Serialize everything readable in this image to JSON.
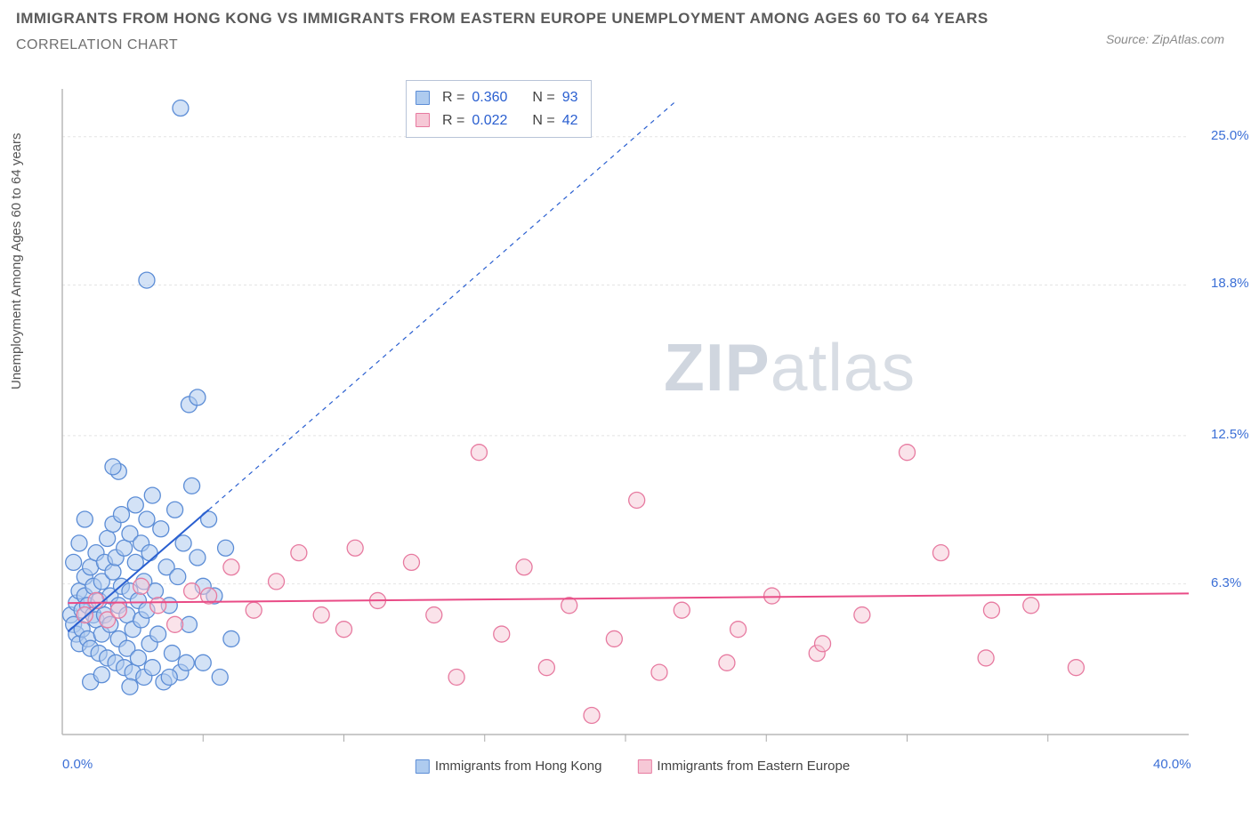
{
  "title": "IMMIGRANTS FROM HONG KONG VS IMMIGRANTS FROM EASTERN EUROPE UNEMPLOYMENT AMONG AGES 60 TO 64 YEARS",
  "subtitle": "CORRELATION CHART",
  "source": "Source: ZipAtlas.com",
  "ylabel": "Unemployment Among Ages 60 to 64 years",
  "watermark_zip": "ZIP",
  "watermark_atlas": "atlas",
  "chart": {
    "type": "scatter",
    "background_color": "#ffffff",
    "grid_color": "#e4e4e4",
    "grid_dash": "3,3",
    "axis_color": "#b9b9b9",
    "tick_color": "#aaaaaa",
    "xlim": [
      0,
      40
    ],
    "ylim": [
      0,
      27
    ],
    "xticks_minor": [
      5,
      10,
      15,
      20,
      25,
      30,
      35
    ],
    "yticks": [
      {
        "v": 6.3,
        "label": "6.3%"
      },
      {
        "v": 12.5,
        "label": "12.5%"
      },
      {
        "v": 18.8,
        "label": "18.8%"
      },
      {
        "v": 25.0,
        "label": "25.0%"
      }
    ],
    "xticks_labeled": [
      {
        "v": 0,
        "label": "0.0%"
      },
      {
        "v": 40,
        "label": "40.0%"
      }
    ],
    "series": [
      {
        "name": "Immigrants from Hong Kong",
        "marker_fill": "#aecbef",
        "marker_stroke": "#5c8dd6",
        "marker_fill_opacity": 0.55,
        "marker_r": 9,
        "trend_color": "#2a5fd0",
        "trend_width": 2,
        "trend_solid": {
          "x1": 0.2,
          "y1": 4.3,
          "x2": 5.2,
          "y2": 9.4
        },
        "trend_dashed": {
          "x1": 5.2,
          "y1": 9.4,
          "x2": 21.8,
          "y2": 26.5
        },
        "R": "0.360",
        "N": "93",
        "points": [
          [
            0.3,
            5.0
          ],
          [
            0.4,
            4.6
          ],
          [
            0.5,
            5.5
          ],
          [
            0.5,
            4.2
          ],
          [
            0.6,
            6.0
          ],
          [
            0.6,
            3.8
          ],
          [
            0.7,
            5.2
          ],
          [
            0.7,
            4.4
          ],
          [
            0.8,
            5.8
          ],
          [
            0.8,
            6.6
          ],
          [
            0.9,
            4.0
          ],
          [
            0.9,
            5.4
          ],
          [
            1.0,
            7.0
          ],
          [
            1.0,
            3.6
          ],
          [
            1.1,
            5.0
          ],
          [
            1.1,
            6.2
          ],
          [
            1.2,
            4.8
          ],
          [
            1.2,
            7.6
          ],
          [
            1.3,
            3.4
          ],
          [
            1.3,
            5.6
          ],
          [
            1.4,
            6.4
          ],
          [
            1.4,
            4.2
          ],
          [
            1.5,
            7.2
          ],
          [
            1.5,
            5.0
          ],
          [
            1.6,
            3.2
          ],
          [
            1.6,
            8.2
          ],
          [
            1.7,
            5.8
          ],
          [
            1.7,
            4.6
          ],
          [
            1.8,
            6.8
          ],
          [
            1.8,
            8.8
          ],
          [
            1.9,
            3.0
          ],
          [
            1.9,
            7.4
          ],
          [
            2.0,
            5.4
          ],
          [
            2.0,
            4.0
          ],
          [
            2.1,
            9.2
          ],
          [
            2.1,
            6.2
          ],
          [
            2.2,
            2.8
          ],
          [
            2.2,
            7.8
          ],
          [
            2.3,
            5.0
          ],
          [
            2.3,
            3.6
          ],
          [
            2.4,
            8.4
          ],
          [
            2.4,
            6.0
          ],
          [
            2.5,
            4.4
          ],
          [
            2.5,
            2.6
          ],
          [
            2.6,
            9.6
          ],
          [
            2.6,
            7.2
          ],
          [
            2.7,
            5.6
          ],
          [
            2.7,
            3.2
          ],
          [
            2.8,
            8.0
          ],
          [
            2.8,
            4.8
          ],
          [
            2.9,
            6.4
          ],
          [
            2.9,
            2.4
          ],
          [
            3.0,
            9.0
          ],
          [
            3.0,
            5.2
          ],
          [
            3.1,
            7.6
          ],
          [
            3.1,
            3.8
          ],
          [
            3.2,
            10.0
          ],
          [
            3.3,
            6.0
          ],
          [
            3.4,
            4.2
          ],
          [
            3.5,
            8.6
          ],
          [
            3.6,
            2.2
          ],
          [
            3.7,
            7.0
          ],
          [
            3.8,
            5.4
          ],
          [
            3.9,
            3.4
          ],
          [
            4.0,
            9.4
          ],
          [
            4.1,
            6.6
          ],
          [
            4.2,
            2.6
          ],
          [
            4.3,
            8.0
          ],
          [
            4.5,
            4.6
          ],
          [
            4.6,
            10.4
          ],
          [
            4.8,
            7.4
          ],
          [
            5.0,
            3.0
          ],
          [
            5.2,
            9.0
          ],
          [
            5.4,
            5.8
          ],
          [
            5.6,
            2.4
          ],
          [
            5.8,
            7.8
          ],
          [
            6.0,
            4.0
          ],
          [
            2.0,
            11.0
          ],
          [
            3.0,
            19.0
          ],
          [
            4.2,
            26.2
          ],
          [
            4.5,
            13.8
          ],
          [
            4.8,
            14.1
          ],
          [
            1.8,
            11.2
          ],
          [
            2.4,
            2.0
          ],
          [
            1.0,
            2.2
          ],
          [
            1.4,
            2.5
          ],
          [
            3.2,
            2.8
          ],
          [
            3.8,
            2.4
          ],
          [
            4.4,
            3.0
          ],
          [
            5.0,
            6.2
          ],
          [
            0.4,
            7.2
          ],
          [
            0.6,
            8.0
          ],
          [
            0.8,
            9.0
          ]
        ]
      },
      {
        "name": "Immigrants from Eastern Europe",
        "marker_fill": "#f6c8d6",
        "marker_stroke": "#e77aa0",
        "marker_fill_opacity": 0.5,
        "marker_r": 9,
        "trend_color": "#e94b86",
        "trend_width": 2,
        "trend_solid": {
          "x1": 0.2,
          "y1": 5.5,
          "x2": 40.0,
          "y2": 5.9
        },
        "R": "0.022",
        "N": "42",
        "points": [
          [
            0.8,
            5.0
          ],
          [
            1.2,
            5.6
          ],
          [
            1.6,
            4.8
          ],
          [
            2.0,
            5.2
          ],
          [
            2.8,
            6.2
          ],
          [
            3.4,
            5.4
          ],
          [
            4.0,
            4.6
          ],
          [
            4.6,
            6.0
          ],
          [
            5.2,
            5.8
          ],
          [
            6.0,
            7.0
          ],
          [
            6.8,
            5.2
          ],
          [
            7.6,
            6.4
          ],
          [
            8.4,
            7.6
          ],
          [
            9.2,
            5.0
          ],
          [
            10.0,
            4.4
          ],
          [
            10.4,
            7.8
          ],
          [
            11.2,
            5.6
          ],
          [
            12.4,
            7.2
          ],
          [
            13.2,
            5.0
          ],
          [
            14.0,
            2.4
          ],
          [
            14.8,
            11.8
          ],
          [
            15.6,
            4.2
          ],
          [
            16.4,
            7.0
          ],
          [
            17.2,
            2.8
          ],
          [
            18.0,
            5.4
          ],
          [
            18.8,
            0.8
          ],
          [
            19.6,
            4.0
          ],
          [
            20.4,
            9.8
          ],
          [
            21.2,
            2.6
          ],
          [
            22.0,
            5.2
          ],
          [
            23.6,
            3.0
          ],
          [
            25.2,
            5.8
          ],
          [
            26.8,
            3.4
          ],
          [
            28.4,
            5.0
          ],
          [
            30.0,
            11.8
          ],
          [
            31.2,
            7.6
          ],
          [
            32.8,
            3.2
          ],
          [
            34.4,
            5.4
          ],
          [
            36.0,
            2.8
          ],
          [
            33.0,
            5.2
          ],
          [
            27.0,
            3.8
          ],
          [
            24.0,
            4.4
          ]
        ]
      }
    ]
  },
  "stats_box": {
    "rows": [
      {
        "swatch_fill": "#aecbef",
        "swatch_stroke": "#5c8dd6",
        "r_label": "R =",
        "r_val": "0.360",
        "n_label": "N =",
        "n_val": "93"
      },
      {
        "swatch_fill": "#f6c8d6",
        "swatch_stroke": "#e77aa0",
        "r_label": "R =",
        "r_val": "0.022",
        "n_label": "N =",
        "n_val": "42"
      }
    ]
  },
  "legend": [
    {
      "swatch_fill": "#aecbef",
      "swatch_stroke": "#5c8dd6",
      "label": "Immigrants from Hong Kong"
    },
    {
      "swatch_fill": "#f6c8d6",
      "swatch_stroke": "#e77aa0",
      "label": "Immigrants from Eastern Europe"
    }
  ]
}
